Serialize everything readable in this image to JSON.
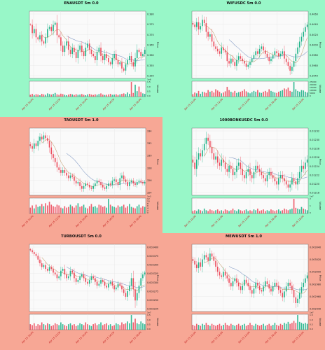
{
  "colors": {
    "green_bg": "#98f7c8",
    "red_bg": "#f7a795",
    "up": "#20b48a",
    "down": "#ec4d5d",
    "ma_fast": "#c8a87e",
    "ma_slow": "#8aa0c8",
    "grid": "#e6e6e6",
    "plot_bg": "#fafafa"
  },
  "chart_data": [
    {
      "type": "candlestick",
      "title": "ENAUSDT 5m 0.0",
      "panel_color": "green",
      "ylabel": "Price",
      "volume_label": "Volume",
      "x_tick_labels": [
        "Apr 15 10:00",
        "Apr 15 12:00",
        "Apr 15 14:00",
        "Apr 15 16:00",
        "Apr 15 18:00"
      ],
      "price_ticks": [
        "0.380",
        "0.375",
        "0.370",
        "0.365",
        "0.360",
        "0.355",
        "0.350"
      ],
      "volume_ticks": [
        "1.5",
        "1.0",
        "0.5",
        "0.0"
      ],
      "volume_multiplier": "1e6",
      "close": [
        0.378,
        0.374,
        0.376,
        0.372,
        0.371,
        0.373,
        0.37,
        0.369,
        0.372,
        0.376,
        0.377,
        0.375,
        0.378,
        0.379,
        0.373,
        0.372,
        0.368,
        0.365,
        0.368,
        0.37,
        0.366,
        0.364,
        0.367,
        0.365,
        0.362,
        0.366,
        0.368,
        0.365,
        0.363,
        0.367,
        0.369,
        0.366,
        0.364,
        0.363,
        0.361,
        0.365,
        0.367,
        0.363,
        0.361,
        0.364,
        0.362,
        0.36,
        0.359,
        0.362,
        0.364,
        0.361,
        0.359,
        0.36,
        0.357,
        0.356,
        0.359,
        0.361,
        0.363,
        0.36,
        0.358,
        0.362,
        0.366,
        0.365,
        0.363,
        0.364,
        0.366
      ],
      "volume": [
        0.2,
        0.3,
        0.18,
        0.26,
        0.22,
        0.15,
        0.3,
        0.24,
        0.2,
        0.35,
        0.28,
        0.22,
        0.3,
        0.4,
        0.25,
        0.2,
        0.32,
        0.28,
        0.2,
        0.16,
        0.22,
        0.3,
        0.24,
        0.18,
        0.26,
        0.2,
        0.22,
        0.28,
        0.2,
        0.16,
        0.24,
        0.3,
        0.22,
        0.18,
        0.25,
        0.2,
        0.28,
        0.35,
        0.22,
        0.18,
        0.2,
        0.24,
        0.3,
        0.2,
        0.22,
        0.26,
        0.18,
        0.24,
        0.3,
        0.35,
        0.28,
        0.45,
        0.3,
        1.6,
        0.4,
        1.3,
        0.6,
        1.1,
        0.5,
        0.35,
        0.3
      ]
    },
    {
      "type": "candlestick",
      "title": "WIFUSDC 5m 0.0",
      "panel_color": "green",
      "ylabel": "Price",
      "volume_label": "Volume",
      "x_tick_labels": [
        "Apr 15 10:00",
        "Apr 15 12:00",
        "Apr 15 14:00",
        "Apr 15 16:00",
        "Apr 15 18:00"
      ],
      "price_ticks": [
        "0.4060",
        "0.4040",
        "0.4020",
        "0.4000",
        "0.3980",
        "0.3960",
        "0.3940"
      ],
      "volume_ticks": [
        "25000",
        "20000",
        "15000",
        "10000",
        "5000",
        "0"
      ],
      "volume_multiplier": "",
      "close": [
        0.4045,
        0.404,
        0.405,
        0.4035,
        0.4042,
        0.4055,
        0.4048,
        0.403,
        0.402,
        0.4025,
        0.401,
        0.4,
        0.3995,
        0.399,
        0.3985,
        0.3998,
        0.3992,
        0.3988,
        0.397,
        0.3965,
        0.3975,
        0.3968,
        0.396,
        0.3972,
        0.398,
        0.3975,
        0.397,
        0.3965,
        0.3958,
        0.3962,
        0.3968,
        0.3975,
        0.3982,
        0.399,
        0.3985,
        0.3995,
        0.4,
        0.3992,
        0.3985,
        0.3978,
        0.397,
        0.3975,
        0.3982,
        0.399,
        0.3986,
        0.398,
        0.3985,
        0.399,
        0.3975,
        0.3968,
        0.396,
        0.395,
        0.3958,
        0.397,
        0.3985,
        0.3998,
        0.401,
        0.402,
        0.403,
        0.404,
        0.4045
      ],
      "volume": [
        3000,
        5000,
        4000,
        7000,
        3500,
        6000,
        5500,
        4500,
        8000,
        6000,
        7000,
        5000,
        9000,
        7500,
        6000,
        4000,
        5000,
        6500,
        12000,
        8000,
        6000,
        5000,
        7000,
        4500,
        5500,
        6000,
        7000,
        9000,
        6500,
        5000,
        4000,
        5500,
        7000,
        6000,
        8000,
        5000,
        4500,
        6000,
        7000,
        5500,
        9000,
        7000,
        6000,
        5000,
        4500,
        6000,
        7000,
        8000,
        10000,
        9000,
        11000,
        7000,
        6000,
        18000,
        9000,
        7000,
        6000,
        8000,
        7500,
        6000,
        5000
      ]
    },
    {
      "type": "candlestick",
      "title": "TAOUSDT 5m 1.0",
      "panel_color": "red",
      "ylabel": "Price",
      "volume_label": "Volume",
      "x_tick_labels": [
        "Apr 15 10:00",
        "Apr 15 12:00",
        "Apr 15 14:00",
        "Apr 15 16:00",
        "Apr 15 18:00"
      ],
      "price_ticks": [
        "334",
        "332",
        "330",
        "328",
        "326",
        "324"
      ],
      "volume_ticks": [
        "12",
        "10",
        "8",
        "6",
        "4",
        "2",
        "0"
      ],
      "volume_multiplier": "1e3",
      "close": [
        332.0,
        331.6,
        332.4,
        332.0,
        332.8,
        333.4,
        333.0,
        333.6,
        333.2,
        332.8,
        331.8,
        330.8,
        330.2,
        329.6,
        328.8,
        328.4,
        328.0,
        328.4,
        328.0,
        327.6,
        327.2,
        327.6,
        327.4,
        326.8,
        326.4,
        326.6,
        326.0,
        325.6,
        326.0,
        326.4,
        326.2,
        325.8,
        325.6,
        326.0,
        326.4,
        326.8,
        326.6,
        326.2,
        325.8,
        325.6,
        326.0,
        326.4,
        326.2,
        326.8,
        327.0,
        326.6,
        326.2,
        327.2,
        327.6,
        327.0,
        326.6,
        326.0,
        326.6,
        326.8,
        326.4,
        326.2,
        326.6,
        326.8,
        326.6,
        326.4,
        326.6
      ],
      "volume": [
        4.0,
        5.5,
        3.5,
        6.0,
        4.5,
        5.0,
        6.5,
        5.0,
        7.0,
        5.5,
        8.0,
        6.0,
        5.0,
        4.5,
        6.0,
        5.5,
        4.0,
        3.5,
        5.0,
        4.0,
        4.5,
        6.0,
        5.0,
        4.0,
        5.5,
        7.0,
        4.5,
        5.0,
        6.0,
        4.0,
        3.5,
        5.0,
        6.5,
        4.5,
        5.0,
        4.0,
        6.0,
        5.5,
        4.5,
        5.0,
        4.0,
        10.0,
        6.0,
        5.0,
        4.5,
        4.0,
        5.5,
        4.5,
        5.0,
        6.0,
        4.0,
        5.0,
        6.5,
        4.5,
        4.0,
        3.5,
        5.0,
        6.0,
        4.0,
        5.0,
        4.5
      ]
    },
    {
      "type": "candlestick",
      "title": "1000BONKUSDC 5m 0.0",
      "panel_color": "green",
      "ylabel": "Price",
      "volume_label": "Volume",
      "x_tick_labels": [
        "Apr 15 10:00",
        "Apr 15 12:00",
        "Apr 15 14:00",
        "Apr 15 16:00",
        "Apr 15 18:00"
      ],
      "price_ticks": [
        "0.01232",
        "0.01230",
        "0.01228",
        "0.01226",
        "0.01224",
        "0.01222",
        "0.01220",
        "0.01218"
      ],
      "volume_ticks": [
        "2",
        "1",
        "0"
      ],
      "volume_multiplier": "1e7",
      "close": [
        0.01225,
        0.01223,
        0.01226,
        0.01228,
        0.01227,
        0.01229,
        0.01231,
        0.01233,
        0.01232,
        0.0123,
        0.01228,
        0.01226,
        0.01227,
        0.01225,
        0.01224,
        0.01226,
        0.01225,
        0.01223,
        0.01222,
        0.01224,
        0.01223,
        0.01221,
        0.01222,
        0.01224,
        0.01225,
        0.01223,
        0.01221,
        0.0122,
        0.01222,
        0.01223,
        0.01221,
        0.0122,
        0.01222,
        0.01224,
        0.01223,
        0.01222,
        0.01221,
        0.0122,
        0.01219,
        0.01221,
        0.01222,
        0.01221,
        0.0122,
        0.01219,
        0.01218,
        0.0122,
        0.01221,
        0.0122,
        0.01219,
        0.01218,
        0.01217,
        0.01218,
        0.0122,
        0.01219,
        0.01218,
        0.0122,
        0.01222,
        0.01224,
        0.01223,
        0.01225,
        0.01226
      ],
      "volume": [
        0.3,
        0.4,
        0.3,
        0.5,
        0.4,
        0.3,
        0.6,
        0.4,
        0.3,
        0.5,
        0.4,
        0.3,
        0.4,
        0.5,
        0.3,
        0.4,
        0.3,
        0.5,
        0.4,
        0.3,
        0.4,
        0.6,
        0.4,
        0.3,
        0.5,
        0.4,
        0.3,
        0.4,
        0.5,
        0.3,
        0.4,
        0.3,
        0.5,
        0.4,
        0.6,
        0.3,
        0.4,
        0.5,
        0.3,
        0.4,
        0.3,
        0.5,
        0.4,
        0.3,
        0.4,
        0.5,
        0.3,
        0.4,
        0.6,
        0.5,
        0.4,
        0.5,
        0.6,
        1.8,
        0.7,
        0.6,
        0.5,
        0.8,
        0.6,
        0.5,
        0.4
      ]
    },
    {
      "type": "candlestick",
      "title": "TURBOUSDT 5m 0.0",
      "panel_color": "red",
      "ylabel": "Price",
      "volume_label": "Volume",
      "x_tick_labels": [
        "Apr 15 10:00",
        "Apr 15 12:00",
        "Apr 15 14:00",
        "Apr 15 16:00",
        "Apr 15 18:00"
      ],
      "price_ticks": [
        "0.003400",
        "0.003375",
        "0.003350",
        "0.003325",
        "0.003300",
        "0.003275",
        "0.003250",
        "0.003225"
      ],
      "volume_ticks": [
        "1.5",
        "1.0",
        "0.5",
        "0.0"
      ],
      "volume_multiplier": "1e7",
      "close": [
        0.003395,
        0.00339,
        0.003385,
        0.00338,
        0.00337,
        0.00336,
        0.00335,
        0.003355,
        0.003345,
        0.00334,
        0.00335,
        0.003345,
        0.003335,
        0.00333,
        0.00332,
        0.003325,
        0.00334,
        0.003345,
        0.00333,
        0.00332,
        0.003325,
        0.00334,
        0.003335,
        0.00332,
        0.00331,
        0.003315,
        0.003325,
        0.00333,
        0.00332,
        0.00331,
        0.003305,
        0.003315,
        0.003325,
        0.00332,
        0.00331,
        0.0033,
        0.003305,
        0.003315,
        0.00331,
        0.0033,
        0.003295,
        0.003305,
        0.00331,
        0.0033,
        0.00329,
        0.003295,
        0.003305,
        0.0033,
        0.00329,
        0.00328,
        0.00327,
        0.003285,
        0.0033,
        0.00332,
        0.00329,
        0.00326,
        0.00328,
        0.0033,
        0.00332,
        0.00333,
        0.003335
      ],
      "volume": [
        0.6,
        0.5,
        0.7,
        0.4,
        0.6,
        0.5,
        0.8,
        0.6,
        0.5,
        0.7,
        0.6,
        0.4,
        0.5,
        0.7,
        0.6,
        0.5,
        0.8,
        0.6,
        0.5,
        0.4,
        0.6,
        0.7,
        0.5,
        0.6,
        0.4,
        0.5,
        0.7,
        0.6,
        0.5,
        0.8,
        0.6,
        0.5,
        0.4,
        0.6,
        0.7,
        0.5,
        0.6,
        0.8,
        0.5,
        0.6,
        0.7,
        0.5,
        0.6,
        0.4,
        0.5,
        0.7,
        0.6,
        0.5,
        0.8,
        0.6,
        0.7,
        0.9,
        0.7,
        1.6,
        0.8,
        1.2,
        0.7,
        0.6,
        0.9,
        0.7,
        0.6
      ]
    },
    {
      "type": "candlestick",
      "title": "MEWUSDT 5m 1.0",
      "panel_color": "red",
      "ylabel": "Price",
      "volume_label": "Volume",
      "x_tick_labels": [
        "Apr 15 10:00",
        "Apr 15 12:00",
        "Apr 15 14:00",
        "Apr 15 16:00",
        "Apr 15 18:00"
      ],
      "price_ticks": [
        "0.003040",
        "0.003020",
        "0.003000",
        "0.002980",
        "0.002960",
        "0.002940"
      ],
      "volume_ticks": [
        "1.5",
        "1.0",
        "0.5",
        "0.0"
      ],
      "volume_multiplier": "1e7",
      "close": [
        0.00302,
        0.003015,
        0.00301,
        0.003018,
        0.003012,
        0.003022,
        0.003028,
        0.003025,
        0.00302,
        0.00303,
        0.003026,
        0.00302,
        0.003012,
        0.003005,
        0.003,
        0.002998,
        0.003005,
        0.003,
        0.002996,
        0.00299,
        0.002985,
        0.002992,
        0.002996,
        0.00299,
        0.002985,
        0.00298,
        0.002986,
        0.002994,
        0.00299,
        0.002985,
        0.00298,
        0.002975,
        0.002982,
        0.00299,
        0.002986,
        0.00298,
        0.002978,
        0.002985,
        0.002992,
        0.002988,
        0.002982,
        0.002978,
        0.002985,
        0.00299,
        0.002986,
        0.00298,
        0.002976,
        0.00297,
        0.002978,
        0.002985,
        0.00299,
        0.002986,
        0.00298,
        0.00297,
        0.002962,
        0.002968,
        0.002976,
        0.002984,
        0.00299,
        0.002996,
        0.003
      ],
      "volume": [
        0.5,
        0.4,
        0.6,
        0.5,
        0.4,
        0.6,
        0.5,
        0.7,
        0.5,
        0.4,
        0.6,
        0.5,
        0.4,
        0.5,
        0.6,
        0.4,
        0.5,
        0.7,
        0.5,
        0.4,
        0.6,
        0.5,
        0.4,
        0.5,
        0.6,
        0.4,
        0.5,
        0.6,
        0.4,
        0.5,
        0.7,
        0.5,
        0.4,
        0.6,
        0.5,
        0.4,
        0.5,
        0.6,
        0.4,
        0.5,
        0.6,
        0.4,
        0.5,
        0.7,
        0.5,
        0.4,
        0.6,
        0.5,
        0.7,
        0.6,
        0.8,
        0.6,
        0.7,
        0.9,
        0.7,
        1.5,
        0.8,
        0.7,
        0.6,
        0.7,
        0.6
      ]
    }
  ]
}
